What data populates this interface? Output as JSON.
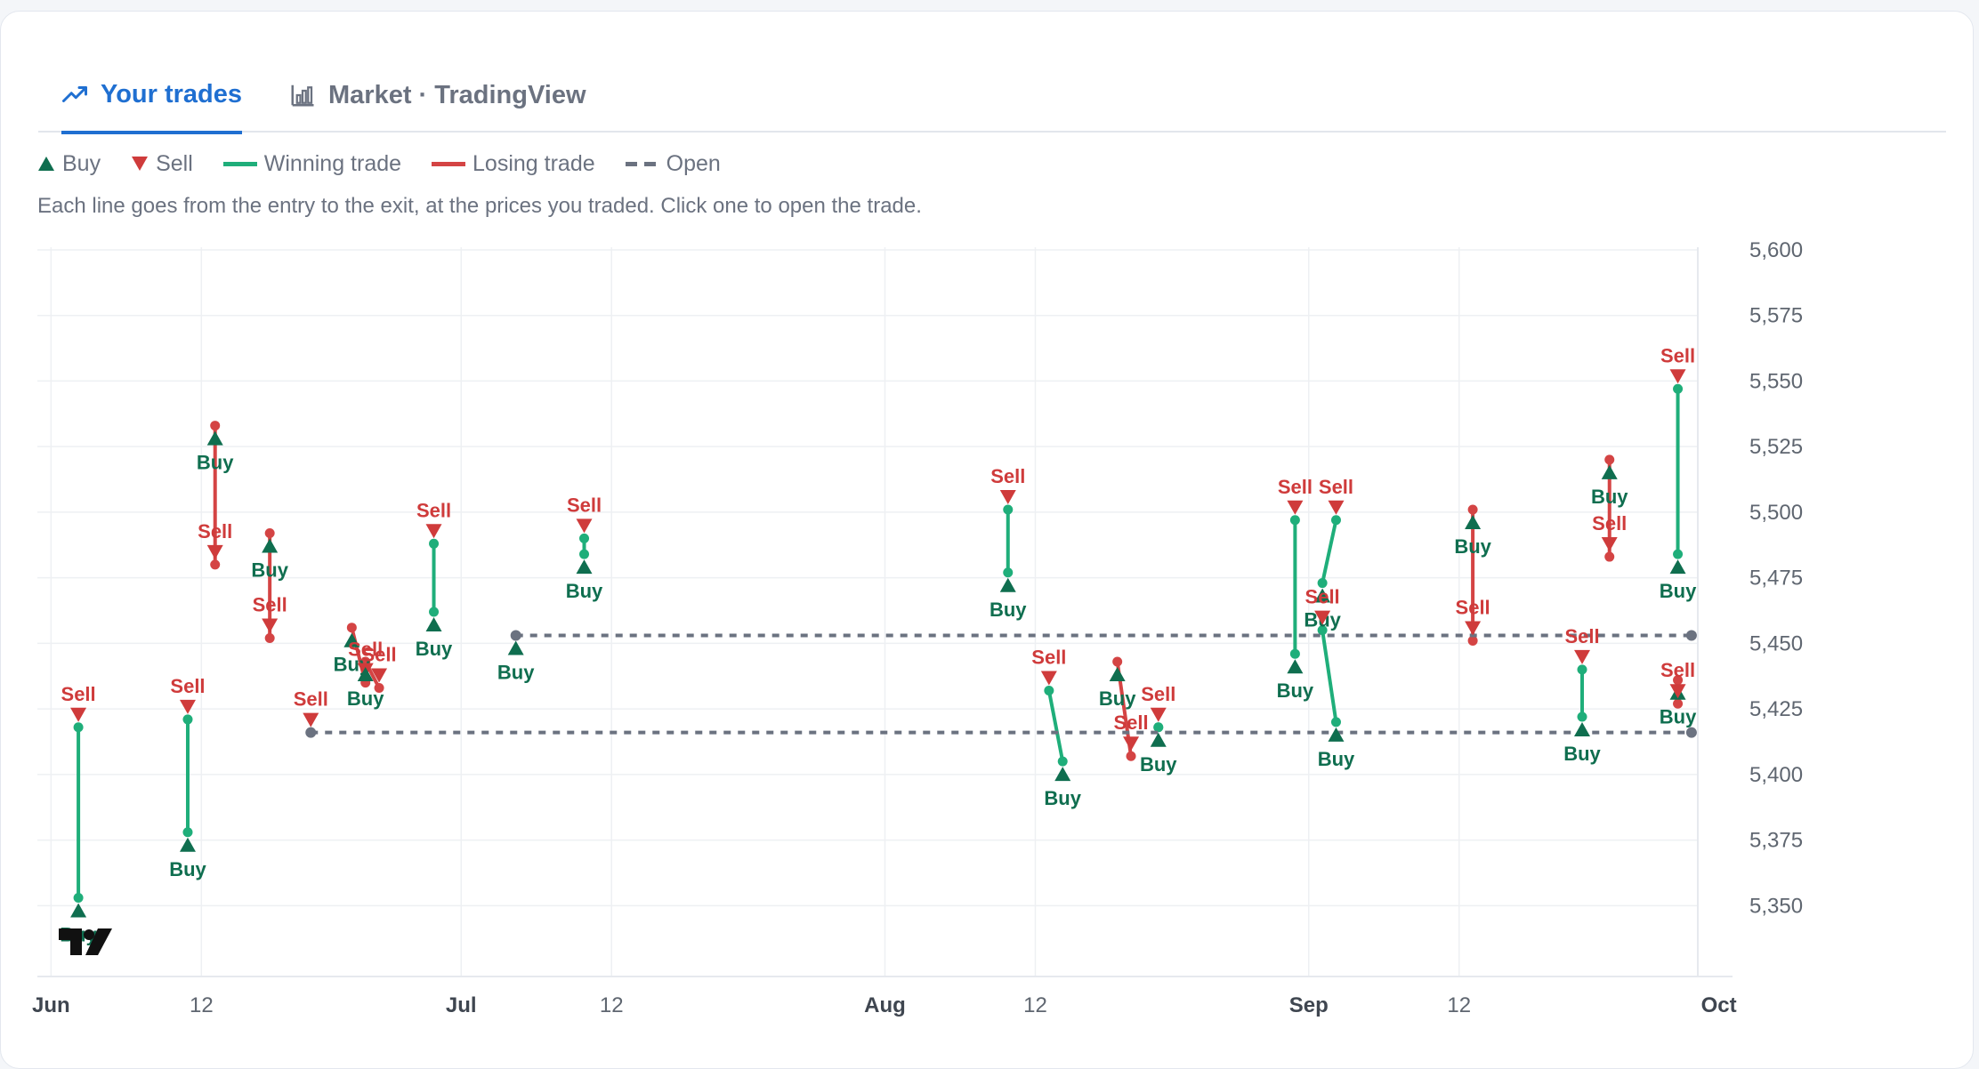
{
  "tabs": [
    {
      "label": "Your trades",
      "icon": "trending-up-icon",
      "active": true
    },
    {
      "label": "Market · TradingView",
      "icon": "bar-chart-icon",
      "active": false
    }
  ],
  "legend": {
    "buy": "Buy",
    "sell": "Sell",
    "winning": "Winning trade",
    "losing": "Losing trade",
    "open": "Open"
  },
  "caption": "Each line goes from the entry to the exit, at the prices you traded. Click one to open the trade.",
  "colors": {
    "buy": "#0f6e4f",
    "sell": "#cf3b3b",
    "win": "#1fae7a",
    "lose": "#d44444",
    "open": "#6b7280",
    "grid": "#eef0f3"
  },
  "chart_data": {
    "type": "scatter",
    "xlabel": "",
    "ylabel": "",
    "x_range": [
      "2024-05-31",
      "2024-10-02"
    ],
    "y_range": [
      5323,
      5601
    ],
    "y_ticks": [
      5350,
      5375,
      5400,
      5425,
      5450,
      5475,
      5500,
      5525,
      5550,
      5575,
      5600
    ],
    "y_tick_labels": [
      "5,350",
      "5,375",
      "5,400",
      "5,425",
      "5,450",
      "5,475",
      "5,500",
      "5,525",
      "5,550",
      "5,575",
      "5,600"
    ],
    "x_ticks": [
      {
        "date": "2024-06-01",
        "label": "Jun",
        "bold": true
      },
      {
        "date": "2024-06-12",
        "label": "12",
        "bold": false
      },
      {
        "date": "2024-07-01",
        "label": "Jul",
        "bold": true
      },
      {
        "date": "2024-07-12",
        "label": "12",
        "bold": false
      },
      {
        "date": "2024-08-01",
        "label": "Aug",
        "bold": true
      },
      {
        "date": "2024-08-12",
        "label": "12",
        "bold": false
      },
      {
        "date": "2024-09-01",
        "label": "Sep",
        "bold": true
      },
      {
        "date": "2024-09-12",
        "label": "12",
        "bold": false
      },
      {
        "date": "2024-10-01",
        "label": "Oct",
        "bold": true
      }
    ],
    "grid": true,
    "marker_labels": {
      "buy": "Buy",
      "sell": "Sell"
    },
    "trades": [
      {
        "entry": {
          "date": "2024-06-03",
          "price": 5353,
          "side": "buy"
        },
        "exit": {
          "date": "2024-06-03",
          "price": 5418,
          "side": "sell"
        },
        "result": "win"
      },
      {
        "entry": {
          "date": "2024-06-11",
          "price": 5378,
          "side": "buy"
        },
        "exit": {
          "date": "2024-06-11",
          "price": 5421,
          "side": "sell"
        },
        "result": "win"
      },
      {
        "entry": {
          "date": "2024-06-13",
          "price": 5533,
          "side": "buy"
        },
        "exit": {
          "date": "2024-06-13",
          "price": 5480,
          "side": "sell"
        },
        "result": "lose"
      },
      {
        "entry": {
          "date": "2024-06-17",
          "price": 5492,
          "side": "buy"
        },
        "exit": {
          "date": "2024-06-17",
          "price": 5452,
          "side": "sell"
        },
        "result": "lose"
      },
      {
        "entry": {
          "date": "2024-06-23",
          "price": 5456,
          "side": "buy"
        },
        "exit": {
          "date": "2024-06-24",
          "price": 5435,
          "side": "sell"
        },
        "result": "lose"
      },
      {
        "entry": {
          "date": "2024-06-24",
          "price": 5443,
          "side": "buy"
        },
        "exit": {
          "date": "2024-06-25",
          "price": 5433,
          "side": "sell"
        },
        "result": "lose"
      },
      {
        "entry": {
          "date": "2024-06-29",
          "price": 5462,
          "side": "buy"
        },
        "exit": {
          "date": "2024-06-29",
          "price": 5488,
          "side": "sell"
        },
        "result": "win"
      },
      {
        "entry": {
          "date": "2024-07-10",
          "price": 5484,
          "side": "buy"
        },
        "exit": {
          "date": "2024-07-10",
          "price": 5490,
          "side": "sell"
        },
        "result": "win"
      },
      {
        "entry": {
          "date": "2024-08-10",
          "price": 5477,
          "side": "buy"
        },
        "exit": {
          "date": "2024-08-10",
          "price": 5501,
          "side": "sell"
        },
        "result": "win"
      },
      {
        "entry": {
          "date": "2024-08-14",
          "price": 5405,
          "side": "buy"
        },
        "exit": {
          "date": "2024-08-13",
          "price": 5432,
          "side": "sell"
        },
        "result": "win"
      },
      {
        "entry": {
          "date": "2024-08-18",
          "price": 5443,
          "side": "buy"
        },
        "exit": {
          "date": "2024-08-19",
          "price": 5407,
          "side": "sell"
        },
        "result": "lose"
      },
      {
        "entry": {
          "date": "2024-08-21",
          "price": 5418,
          "side": "buy"
        },
        "exit": {
          "date": "2024-08-21",
          "price": 5418,
          "side": "sell"
        },
        "result": "win"
      },
      {
        "entry": {
          "date": "2024-08-31",
          "price": 5446,
          "side": "buy"
        },
        "exit": {
          "date": "2024-08-31",
          "price": 5497,
          "side": "sell"
        },
        "result": "win"
      },
      {
        "entry": {
          "date": "2024-09-02",
          "price": 5473,
          "side": "buy"
        },
        "exit": {
          "date": "2024-09-03",
          "price": 5497,
          "side": "sell"
        },
        "result": "win"
      },
      {
        "entry": {
          "date": "2024-09-03",
          "price": 5420,
          "side": "buy"
        },
        "exit": {
          "date": "2024-09-02",
          "price": 5455,
          "side": "sell"
        },
        "result": "win"
      },
      {
        "entry": {
          "date": "2024-09-13",
          "price": 5501,
          "side": "buy"
        },
        "exit": {
          "date": "2024-09-13",
          "price": 5451,
          "side": "sell"
        },
        "result": "lose"
      },
      {
        "entry": {
          "date": "2024-09-21",
          "price": 5422,
          "side": "buy"
        },
        "exit": {
          "date": "2024-09-21",
          "price": 5440,
          "side": "sell"
        },
        "result": "win"
      },
      {
        "entry": {
          "date": "2024-09-23",
          "price": 5520,
          "side": "buy"
        },
        "exit": {
          "date": "2024-09-23",
          "price": 5483,
          "side": "sell"
        },
        "result": "lose"
      },
      {
        "entry": {
          "date": "2024-09-28",
          "price": 5436,
          "side": "buy"
        },
        "exit": {
          "date": "2024-09-28",
          "price": 5427,
          "side": "sell"
        },
        "result": "lose"
      },
      {
        "entry": {
          "date": "2024-09-28",
          "price": 5484,
          "side": "buy"
        },
        "exit": {
          "date": "2024-09-28",
          "price": 5547,
          "side": "sell"
        },
        "result": "win"
      }
    ],
    "open_trades": [
      {
        "entry": {
          "date": "2024-07-05",
          "price": 5453,
          "side": "buy"
        },
        "last": {
          "date": "2024-09-29",
          "price": 5453
        }
      },
      {
        "entry": {
          "date": "2024-06-20",
          "price": 5416,
          "side": "sell"
        },
        "last": {
          "date": "2024-09-29",
          "price": 5416
        }
      }
    ]
  }
}
